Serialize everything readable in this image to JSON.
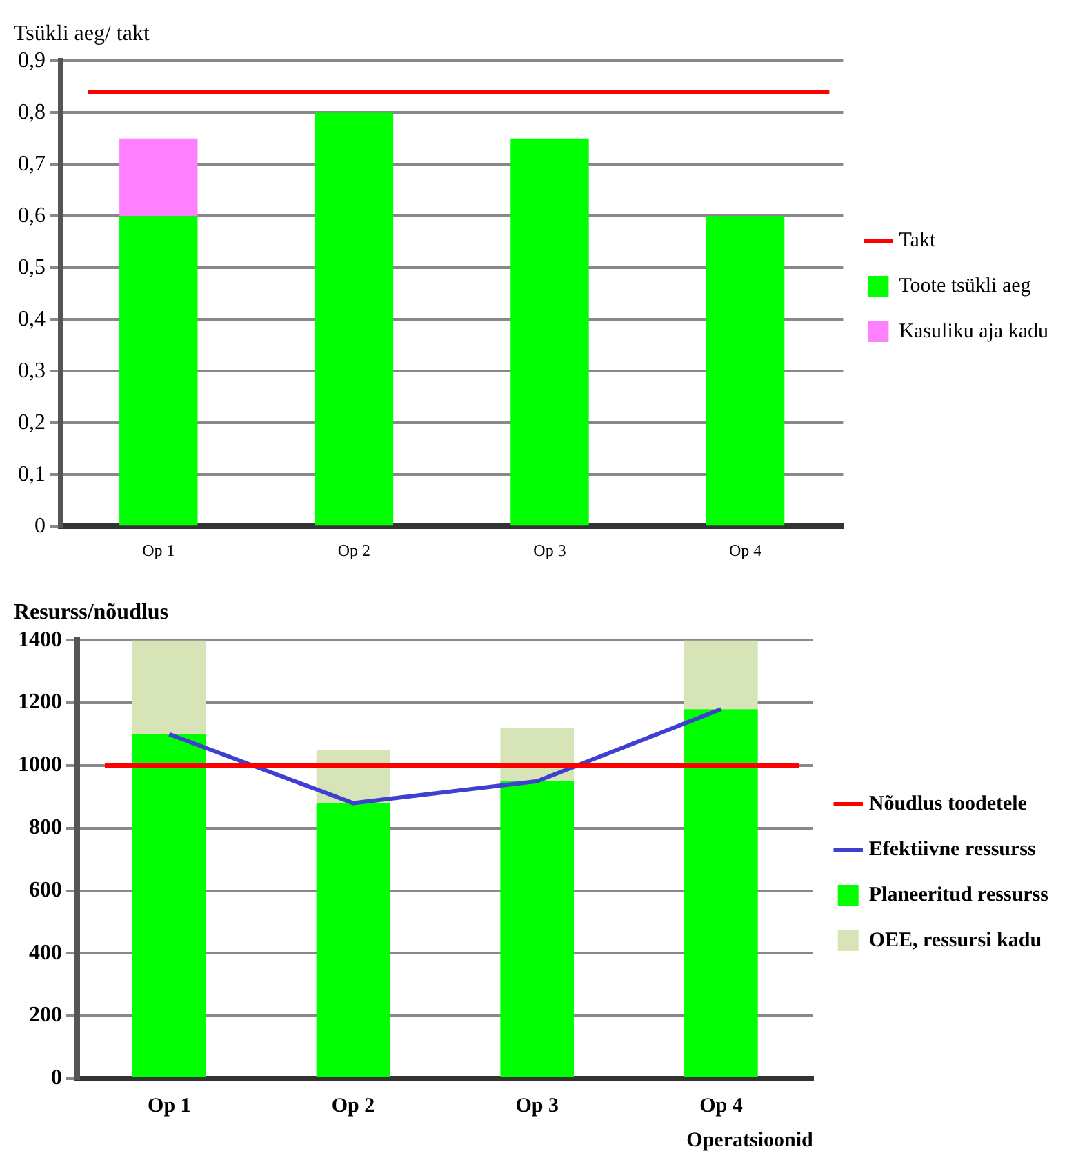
{
  "chart_data": [
    {
      "type": "bar",
      "ylabel": "Tsükli aeg/ takt",
      "categories": [
        "Op 1",
        "Op 2",
        "Op 3",
        "Op 4"
      ],
      "stacked": true,
      "series": [
        {
          "name": "Toote tsükli aeg",
          "color": "#00ff00",
          "values": [
            0.6,
            0.8,
            0.75,
            0.6
          ]
        },
        {
          "name": "Kasuliku aja kadu",
          "color": "#ff80ff",
          "values": [
            0.15,
            0,
            0,
            0
          ]
        }
      ],
      "ylim": [
        0,
        0.9
      ],
      "yticks": [
        0,
        {
          "value": 0.1,
          "label": "0,1"
        },
        {
          "value": 0.2,
          "label": "0,2"
        },
        {
          "value": 0.3,
          "label": "0,3"
        },
        {
          "value": 0.4,
          "label": "0,4"
        },
        {
          "value": 0.5,
          "label": "0,5"
        },
        {
          "value": 0.6,
          "label": "0,6"
        },
        {
          "value": 0.7,
          "label": "0,7"
        },
        {
          "value": 0.8,
          "label": "0,8"
        },
        {
          "value": 0.9,
          "label": "0,9"
        }
      ],
      "ref_lines": [
        {
          "axis": "y",
          "value": 0.84,
          "label": "Takt",
          "color": "#ff0000"
        }
      ],
      "grid": "y",
      "legend": "right"
    },
    {
      "type": "bar",
      "ylabel": "Resurss/nõudlus",
      "xlabel": "Operatsioonid",
      "categories": [
        "Op 1",
        "Op 2",
        "Op 3",
        "Op 4"
      ],
      "stacked": true,
      "series": [
        {
          "name": "Efektiivne ressurss",
          "type": "line",
          "color": "#4040d0",
          "values": [
            1100,
            880,
            950,
            1180
          ]
        },
        {
          "name": "Planeeritud ressurss",
          "color": "#00ff00",
          "values": [
            1100,
            880,
            950,
            1180
          ]
        },
        {
          "name": "OEE, ressursi kadu",
          "color": "#d6e4b8",
          "values": [
            300,
            170,
            170,
            220
          ]
        }
      ],
      "ylim": [
        0,
        1400
      ],
      "yticks": [
        0,
        200,
        400,
        600,
        800,
        1000,
        1200,
        1400
      ],
      "ref_lines": [
        {
          "axis": "y",
          "value": 1000,
          "label": "Nõudlus toodetele",
          "color": "#ff0000"
        }
      ],
      "grid": "y",
      "legend": "right"
    }
  ]
}
